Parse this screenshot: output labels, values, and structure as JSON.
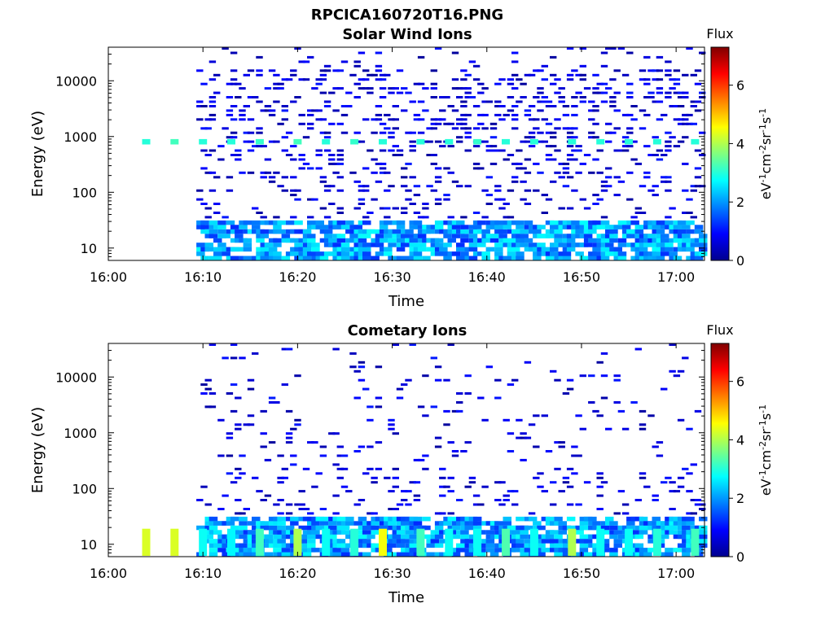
{
  "figure": {
    "title": "RPCICA160720T16.PNG"
  },
  "chart_data": [
    {
      "type": "heatmap",
      "title": "Solar Wind Ions",
      "xlabel": "Time",
      "ylabel": "Energy (eV)",
      "y_scale": "log",
      "ylim": [
        6,
        40000
      ],
      "xlim": [
        "16:00",
        "17:03"
      ],
      "x_ticks": [
        "16:00",
        "16:10",
        "16:20",
        "16:30",
        "16:40",
        "16:50",
        "17:00"
      ],
      "y_ticks": [
        "10",
        "100",
        "1000",
        "10000"
      ],
      "colorbar": {
        "label": "Flux",
        "units": "eV-1cm-2sr-1s-1",
        "ticks": [
          "0",
          "2",
          "4",
          "6"
        ],
        "range": [
          0,
          7.3
        ]
      },
      "band_peaks": [
        {
          "time": "16:04",
          "energy": 800,
          "flux": 3.0
        },
        {
          "time": "16:07",
          "energy": 800,
          "flux": 3.2
        },
        {
          "time": "16:10",
          "energy": 800,
          "flux": 3.0
        },
        {
          "time": "16:13",
          "energy": 800,
          "flux": 3.0
        },
        {
          "time": "16:16",
          "energy": 800,
          "flux": 3.1
        },
        {
          "time": "16:20",
          "energy": 800,
          "flux": 3.2
        },
        {
          "time": "16:23",
          "energy": 800,
          "flux": 3.0
        },
        {
          "time": "16:26",
          "energy": 800,
          "flux": 3.1
        },
        {
          "time": "16:29",
          "energy": 800,
          "flux": 3.0
        },
        {
          "time": "16:33",
          "energy": 800,
          "flux": 3.0
        },
        {
          "time": "16:36",
          "energy": 800,
          "flux": 3.0
        },
        {
          "time": "16:39",
          "energy": 800,
          "flux": 3.1
        },
        {
          "time": "16:42",
          "energy": 800,
          "flux": 3.0
        },
        {
          "time": "16:45",
          "energy": 800,
          "flux": 3.0
        },
        {
          "time": "16:49",
          "energy": 800,
          "flux": 3.0
        },
        {
          "time": "16:52",
          "energy": 800,
          "flux": 3.0
        },
        {
          "time": "16:55",
          "energy": 800,
          "flux": 3.0
        },
        {
          "time": "16:58",
          "energy": 800,
          "flux": 3.0
        },
        {
          "time": "17:02",
          "energy": 800,
          "flux": 3.0
        }
      ]
    },
    {
      "type": "heatmap",
      "title": "Cometary Ions",
      "xlabel": "Time",
      "ylabel": "Energy (eV)",
      "y_scale": "log",
      "ylim": [
        6,
        40000
      ],
      "xlim": [
        "16:00",
        "17:03"
      ],
      "x_ticks": [
        "16:00",
        "16:10",
        "16:20",
        "16:30",
        "16:40",
        "16:50",
        "17:00"
      ],
      "y_ticks": [
        "10",
        "100",
        "1000",
        "10000"
      ],
      "colorbar": {
        "label": "Flux",
        "units": "eV-1cm-2sr-1s-1",
        "ticks": [
          "0",
          "2",
          "4",
          "6"
        ],
        "range": [
          0,
          7.3
        ]
      },
      "band_peaks": [
        {
          "time": "16:04",
          "energy": 13,
          "flux": 4.3
        },
        {
          "time": "16:07",
          "energy": 13,
          "flux": 4.3
        },
        {
          "time": "16:10",
          "energy": 13,
          "flux": 2.8
        },
        {
          "time": "16:13",
          "energy": 13,
          "flux": 2.7
        },
        {
          "time": "16:16",
          "energy": 13,
          "flux": 3.2
        },
        {
          "time": "16:20",
          "energy": 13,
          "flux": 4.0
        },
        {
          "time": "16:23",
          "energy": 13,
          "flux": 2.8
        },
        {
          "time": "16:26",
          "energy": 13,
          "flux": 3.0
        },
        {
          "time": "16:29",
          "energy": 13,
          "flux": 4.5
        },
        {
          "time": "16:33",
          "energy": 13,
          "flux": 3.2
        },
        {
          "time": "16:36",
          "energy": 13,
          "flux": 2.8
        },
        {
          "time": "16:39",
          "energy": 13,
          "flux": 2.8
        },
        {
          "time": "16:42",
          "energy": 13,
          "flux": 3.3
        },
        {
          "time": "16:45",
          "energy": 13,
          "flux": 2.8
        },
        {
          "time": "16:49",
          "energy": 13,
          "flux": 4.0
        },
        {
          "time": "16:52",
          "energy": 13,
          "flux": 2.8
        },
        {
          "time": "16:55",
          "energy": 13,
          "flux": 2.8
        },
        {
          "time": "16:58",
          "energy": 13,
          "flux": 3.0
        },
        {
          "time": "17:02",
          "energy": 13,
          "flux": 3.2
        }
      ]
    }
  ]
}
